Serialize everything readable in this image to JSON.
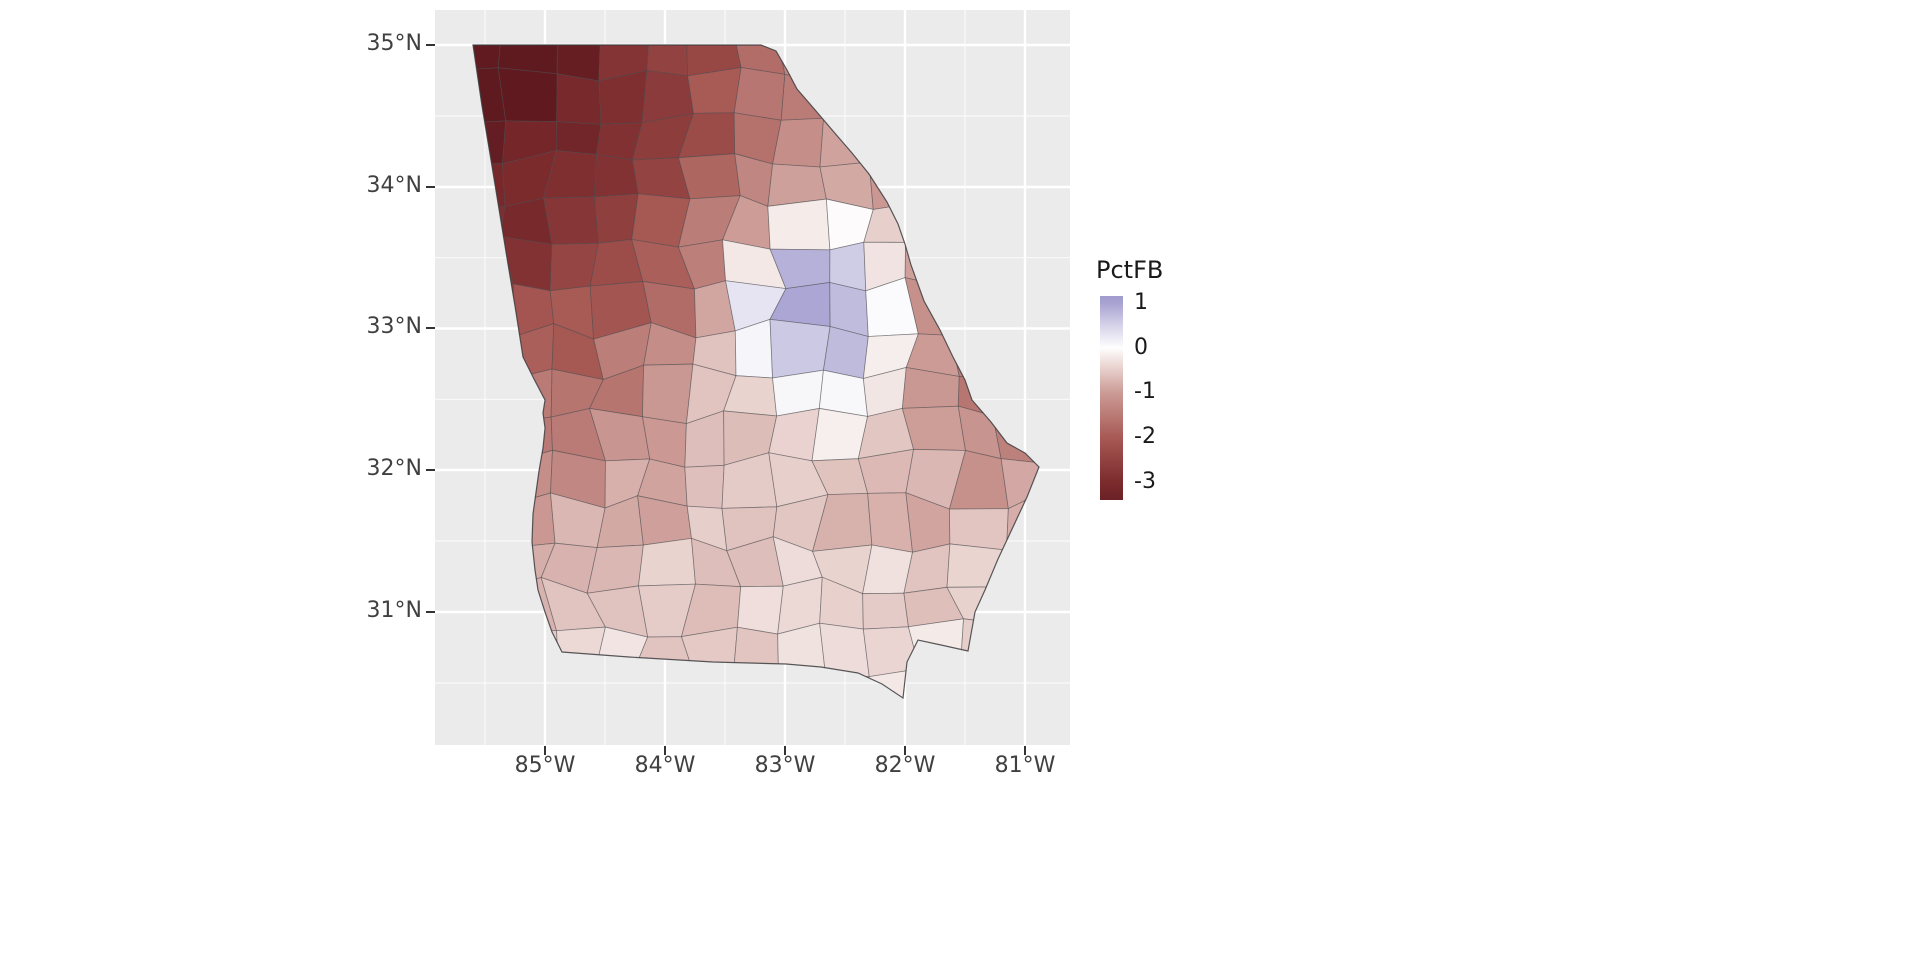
{
  "figure": {
    "background_color": "#ffffff",
    "panel_background_color": "#EBEBEB",
    "gridline_color": "#ffffff"
  },
  "axes": {
    "y": {
      "labels": [
        "35°N",
        "34°N",
        "33°N",
        "32°N",
        "31°N"
      ],
      "lats": [
        35,
        34,
        33,
        32,
        31
      ]
    },
    "x": {
      "labels": [
        "85°W",
        "84°W",
        "83°W",
        "82°W",
        "81°W"
      ],
      "lons": [
        -85,
        -84,
        -83,
        -82,
        -81
      ]
    }
  },
  "legend": {
    "title": "PctFB",
    "ticks": [
      "1",
      "0",
      "-1",
      "-2",
      "-3"
    ],
    "tick_values": [
      1,
      0,
      -1,
      -2,
      -3
    ],
    "range": [
      1.15,
      -3.4
    ]
  },
  "map": {
    "region": "Georgia (USA) county choropleth",
    "variable": "PctFB",
    "bounds": {
      "lon": [
        -85.6,
        -80.84
      ],
      "lat": [
        30.36,
        35.0
      ]
    },
    "county_border_color": "#48484c",
    "state_border_color": "#3c3c40",
    "color_scale": [
      {
        "v": 1.3,
        "c": "#9b96cb"
      },
      {
        "v": 1.0,
        "c": "#a7a2d1"
      },
      {
        "v": 0.5,
        "c": "#d5d2e9"
      },
      {
        "v": 0.0,
        "c": "#fefefe"
      },
      {
        "v": -0.5,
        "c": "#e6cdc9"
      },
      {
        "v": -1.0,
        "c": "#cc9b96"
      },
      {
        "v": -2.0,
        "c": "#a85a55"
      },
      {
        "v": -3.0,
        "c": "#7c2b2d"
      },
      {
        "v": -3.7,
        "c": "#5f1a1f"
      }
    ],
    "value_field": {
      "baseline": -0.25,
      "blobs": [
        {
          "u": 0.0,
          "w": 0.0,
          "amp": -3.45,
          "sigma": 0.58
        },
        {
          "u": 1.02,
          "w": 0.42,
          "amp": -1.3,
          "sigma": 0.33
        },
        {
          "u": 0.62,
          "w": 0.4,
          "amp": 2.3,
          "sigma": 0.17
        }
      ],
      "noise": 0.22
    }
  },
  "chart_data": {
    "type": "choropleth",
    "region": "Georgia (USA) counties",
    "variable": "PctFB",
    "legend_title": "PctFB",
    "legend_ticks": [
      1,
      0,
      -1,
      -2,
      -3
    ],
    "value_range_shown": [
      1,
      -3.7
    ],
    "x_axis": {
      "label": "",
      "ticks": [
        "85°W",
        "84°W",
        "83°W",
        "82°W",
        "81°W"
      ]
    },
    "y_axis": {
      "label": "",
      "ticks": [
        "35°N",
        "34°N",
        "33°N",
        "32°N",
        "31°N"
      ]
    },
    "pattern": "Strongly negative (dark red) values concentrated in northwest Georgia, grading to mildly negative (pale pink / near-white) counties across the south; a cluster of positive (violet) counties in east-central Georgia surrounded by a near-white ring; moderately negative (medium red) counties along the eastern and coastal side."
  }
}
